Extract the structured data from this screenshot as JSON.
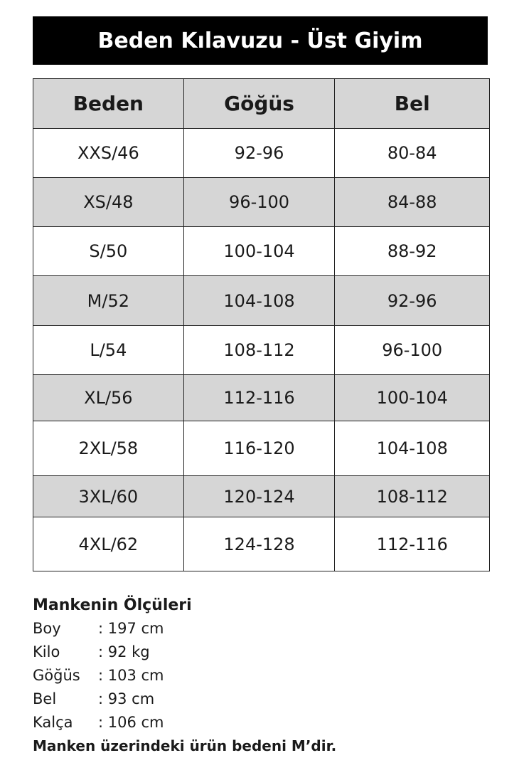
{
  "title": "Beden Kılavuzu - Üst Giyim",
  "colors": {
    "header_bg": "#000000",
    "row_shade": "#d6d6d6"
  },
  "table": {
    "headers": [
      "Beden",
      "Göğüs",
      "Bel"
    ],
    "rows": [
      [
        "XXS/46",
        "92-96",
        "80-84"
      ],
      [
        "XS/48",
        "96-100",
        "84-88"
      ],
      [
        "S/50",
        "100-104",
        "88-92"
      ],
      [
        "M/52",
        "104-108",
        "92-96"
      ],
      [
        "L/54",
        "108-112",
        "96-100"
      ],
      [
        "XL/56",
        "112-116",
        "100-104"
      ],
      [
        "2XL/58",
        "116-120",
        "104-108"
      ],
      [
        "3XL/60",
        "120-124",
        "108-112"
      ],
      [
        "4XL/62",
        "124-128",
        "112-116"
      ]
    ]
  },
  "model": {
    "heading": "Mankenin Ölçüleri",
    "items": [
      {
        "label": "Boy",
        "value": ": 197 cm"
      },
      {
        "label": "Kilo",
        "value": ": 92 kg"
      },
      {
        "label": "Göğüs",
        "value": ": 103 cm"
      },
      {
        "label": "Bel",
        "value": ": 93 cm"
      },
      {
        "label": "Kalça",
        "value": ": 106 cm"
      }
    ],
    "footer": "Manken üzerindeki ürün bedeni  M’dir."
  }
}
